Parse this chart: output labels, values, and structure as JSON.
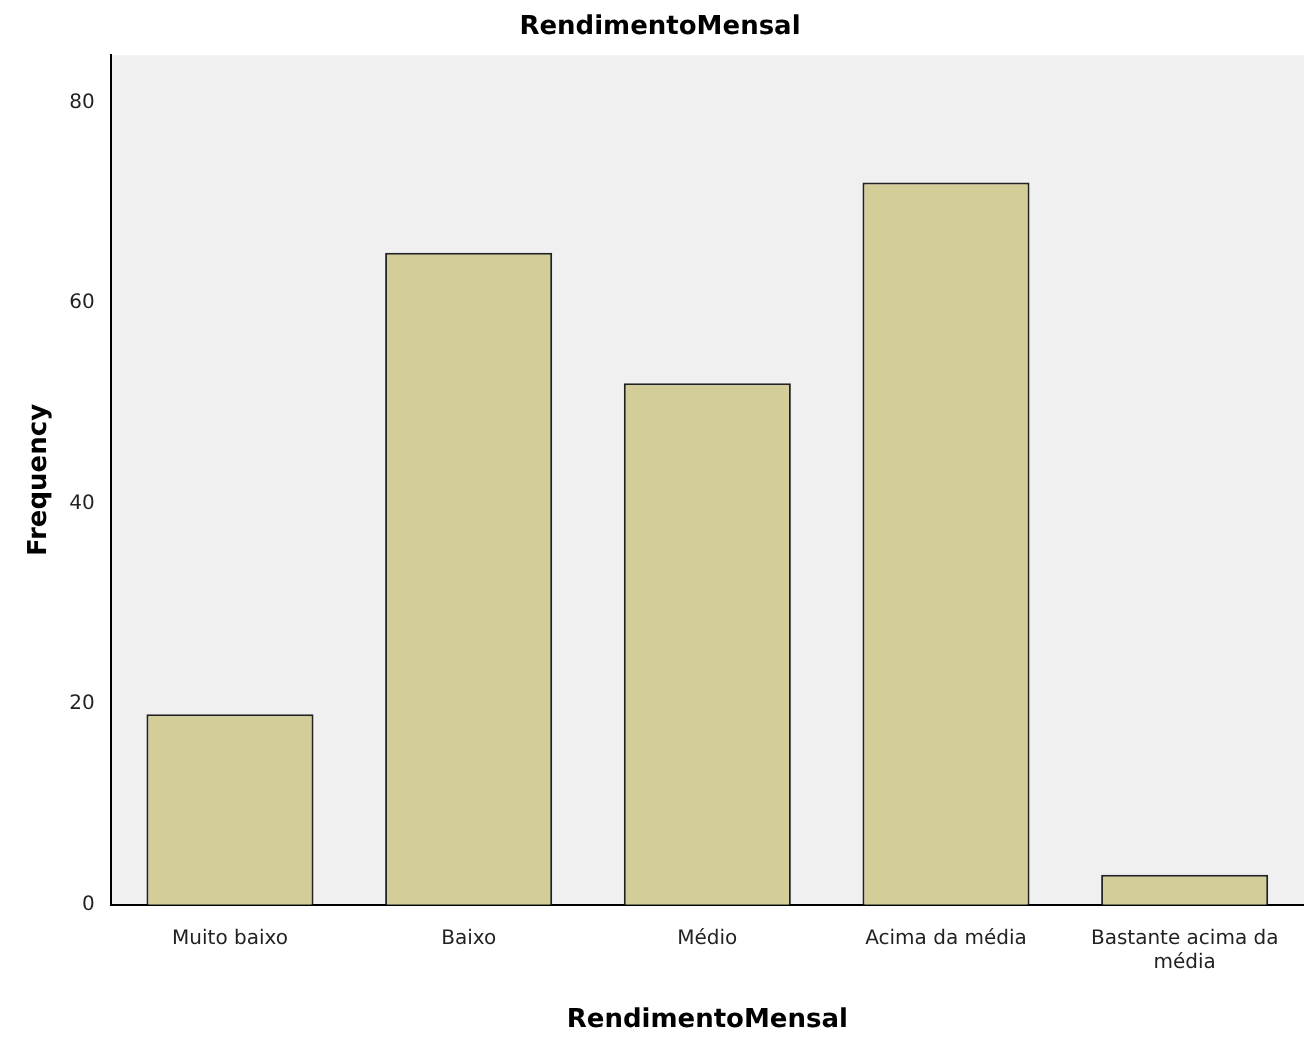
{
  "chart_data": {
    "type": "bar",
    "title": "RendimentoMensal",
    "xlabel": "RendimentoMensal",
    "ylabel": "Frequency",
    "categories": [
      "Muito baixo",
      "Baixo",
      "Médio",
      "Acima da média",
      "Bastante acima da média"
    ],
    "values": [
      19,
      65,
      52,
      72,
      3
    ],
    "color": "#d3ce98",
    "ylim": [
      0,
      84.7
    ],
    "yticks": [
      0,
      20,
      40,
      60,
      80
    ],
    "grid": false
  }
}
